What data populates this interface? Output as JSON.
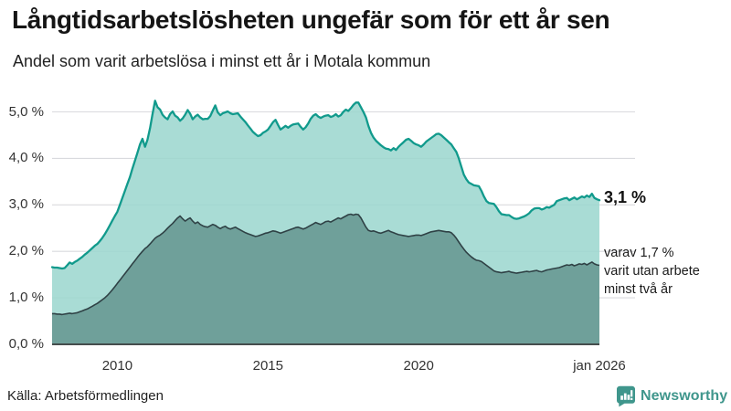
{
  "header": {
    "title": "Långtidsarbetslösheten ungefär som för ett år sen",
    "subtitle": "Andel som varit arbetslösa i minst ett år i Motala kommun"
  },
  "chart_data": {
    "type": "area",
    "title": "Långtidsarbetslösheten ungefär som för ett år sen",
    "subtitle": "Andel som varit arbetslösa i minst ett år i Motala kommun",
    "unit": "%",
    "x_frequency": "monthly",
    "x_start": "2007-11",
    "x_end": "2026-01",
    "ylim": [
      0,
      5.45
    ],
    "grid": "horizontal",
    "legend_position": "right-annotations",
    "yticks": [
      {
        "value": 0,
        "label": "0,0 %"
      },
      {
        "value": 1,
        "label": "1,0 %"
      },
      {
        "value": 2,
        "label": "2,0 %"
      },
      {
        "value": 3,
        "label": "3,0 %"
      },
      {
        "value": 4,
        "label": "4,0 %"
      },
      {
        "value": 5,
        "label": "5,0 %"
      }
    ],
    "xticks": [
      {
        "year": 2010,
        "label": "2010"
      },
      {
        "year": 2015,
        "label": "2015"
      },
      {
        "year": 2020,
        "label": "2020"
      },
      {
        "year": 2026,
        "label": "jan 2026"
      }
    ],
    "series": [
      {
        "name": "Andel som varit arbetslösa i minst ett år",
        "end_value": 3.1,
        "values": [
          1.66,
          1.65,
          1.65,
          1.64,
          1.63,
          1.64,
          1.7,
          1.76,
          1.73,
          1.77,
          1.8,
          1.84,
          1.88,
          1.93,
          1.97,
          2.02,
          2.07,
          2.12,
          2.16,
          2.22,
          2.29,
          2.37,
          2.46,
          2.56,
          2.66,
          2.76,
          2.85,
          3.0,
          3.15,
          3.3,
          3.45,
          3.6,
          3.78,
          3.95,
          4.12,
          4.3,
          4.42,
          4.25,
          4.4,
          4.65,
          4.95,
          5.24,
          5.1,
          5.05,
          4.94,
          4.88,
          4.84,
          4.95,
          5.01,
          4.92,
          4.88,
          4.81,
          4.86,
          4.94,
          5.04,
          4.96,
          4.84,
          4.9,
          4.94,
          4.88,
          4.84,
          4.85,
          4.85,
          4.91,
          5.03,
          5.14,
          4.99,
          4.93,
          4.97,
          4.99,
          5.01,
          4.97,
          4.95,
          4.96,
          4.97,
          4.9,
          4.84,
          4.78,
          4.71,
          4.64,
          4.57,
          4.52,
          4.48,
          4.5,
          4.55,
          4.58,
          4.62,
          4.7,
          4.78,
          4.83,
          4.72,
          4.62,
          4.66,
          4.7,
          4.66,
          4.7,
          4.73,
          4.74,
          4.75,
          4.68,
          4.62,
          4.67,
          4.75,
          4.85,
          4.92,
          4.95,
          4.9,
          4.87,
          4.9,
          4.92,
          4.93,
          4.89,
          4.91,
          4.95,
          4.9,
          4.93,
          5.0,
          5.05,
          5.02,
          5.08,
          5.15,
          5.2,
          5.2,
          5.1,
          5.0,
          4.88,
          4.7,
          4.55,
          4.45,
          4.38,
          4.33,
          4.28,
          4.24,
          4.21,
          4.2,
          4.17,
          4.22,
          4.18,
          4.25,
          4.3,
          4.35,
          4.4,
          4.42,
          4.38,
          4.33,
          4.3,
          4.28,
          4.25,
          4.3,
          4.36,
          4.4,
          4.44,
          4.48,
          4.52,
          4.53,
          4.5,
          4.45,
          4.4,
          4.35,
          4.3,
          4.22,
          4.14,
          4.0,
          3.82,
          3.65,
          3.55,
          3.48,
          3.45,
          3.42,
          3.41,
          3.4,
          3.3,
          3.18,
          3.08,
          3.04,
          3.03,
          3.02,
          2.95,
          2.86,
          2.8,
          2.79,
          2.78,
          2.78,
          2.74,
          2.71,
          2.7,
          2.71,
          2.73,
          2.75,
          2.78,
          2.82,
          2.88,
          2.92,
          2.93,
          2.93,
          2.9,
          2.92,
          2.95,
          2.94,
          2.97,
          3.0,
          3.08,
          3.1,
          3.12,
          3.14,
          3.15,
          3.1,
          3.13,
          3.16,
          3.12,
          3.15,
          3.18,
          3.16,
          3.2,
          3.17,
          3.24,
          3.15,
          3.12,
          3.1
        ]
      },
      {
        "name": "varav utan arbete minst två år",
        "end_value": 1.7,
        "values": [
          0.66,
          0.66,
          0.65,
          0.65,
          0.64,
          0.65,
          0.66,
          0.67,
          0.66,
          0.67,
          0.68,
          0.7,
          0.72,
          0.74,
          0.76,
          0.79,
          0.82,
          0.85,
          0.88,
          0.92,
          0.96,
          1.0,
          1.05,
          1.11,
          1.17,
          1.24,
          1.31,
          1.38,
          1.45,
          1.52,
          1.59,
          1.66,
          1.73,
          1.8,
          1.87,
          1.94,
          2.0,
          2.06,
          2.1,
          2.16,
          2.22,
          2.28,
          2.32,
          2.35,
          2.39,
          2.44,
          2.5,
          2.55,
          2.6,
          2.66,
          2.72,
          2.76,
          2.7,
          2.65,
          2.69,
          2.72,
          2.65,
          2.6,
          2.63,
          2.58,
          2.55,
          2.53,
          2.52,
          2.55,
          2.58,
          2.56,
          2.52,
          2.49,
          2.52,
          2.54,
          2.5,
          2.48,
          2.5,
          2.52,
          2.49,
          2.46,
          2.43,
          2.4,
          2.38,
          2.36,
          2.34,
          2.32,
          2.33,
          2.35,
          2.37,
          2.39,
          2.4,
          2.42,
          2.44,
          2.43,
          2.41,
          2.39,
          2.41,
          2.43,
          2.45,
          2.47,
          2.49,
          2.51,
          2.52,
          2.5,
          2.48,
          2.5,
          2.53,
          2.56,
          2.59,
          2.62,
          2.6,
          2.58,
          2.61,
          2.64,
          2.65,
          2.63,
          2.66,
          2.69,
          2.72,
          2.7,
          2.73,
          2.76,
          2.79,
          2.8,
          2.78,
          2.8,
          2.79,
          2.72,
          2.62,
          2.52,
          2.45,
          2.43,
          2.44,
          2.42,
          2.4,
          2.39,
          2.41,
          2.43,
          2.45,
          2.42,
          2.4,
          2.38,
          2.36,
          2.35,
          2.34,
          2.33,
          2.32,
          2.33,
          2.34,
          2.35,
          2.35,
          2.34,
          2.36,
          2.38,
          2.4,
          2.42,
          2.43,
          2.44,
          2.45,
          2.44,
          2.43,
          2.42,
          2.42,
          2.4,
          2.35,
          2.28,
          2.2,
          2.12,
          2.05,
          1.98,
          1.93,
          1.88,
          1.84,
          1.81,
          1.8,
          1.78,
          1.74,
          1.7,
          1.66,
          1.62,
          1.58,
          1.56,
          1.55,
          1.54,
          1.55,
          1.56,
          1.57,
          1.55,
          1.54,
          1.53,
          1.54,
          1.55,
          1.56,
          1.57,
          1.56,
          1.57,
          1.58,
          1.59,
          1.57,
          1.56,
          1.58,
          1.6,
          1.61,
          1.62,
          1.63,
          1.64,
          1.65,
          1.67,
          1.69,
          1.71,
          1.7,
          1.72,
          1.69,
          1.71,
          1.73,
          1.72,
          1.74,
          1.71,
          1.74,
          1.77,
          1.73,
          1.71,
          1.7
        ]
      }
    ],
    "annotations": {
      "total_end_label": "3,1 %",
      "subset_end_lines": [
        "varav 1,7 %",
        "varit utan arbete",
        "minst två år"
      ]
    }
  },
  "footer": {
    "source": "Källa: Arbetsförmedlingen",
    "brand": "Newsworthy"
  },
  "colors": {
    "teal_line": "#119a8c",
    "light_fill": "#9ad6ce",
    "light_fill_opacity": 0.85,
    "dark_line": "#2f4145",
    "dark_fill": "#6b9b96",
    "dark_fill_opacity": 0.93,
    "grid": "#d9dade",
    "baseline": "#454d4d",
    "axis_text": "#333333",
    "brand_teal": "#3f968c"
  }
}
